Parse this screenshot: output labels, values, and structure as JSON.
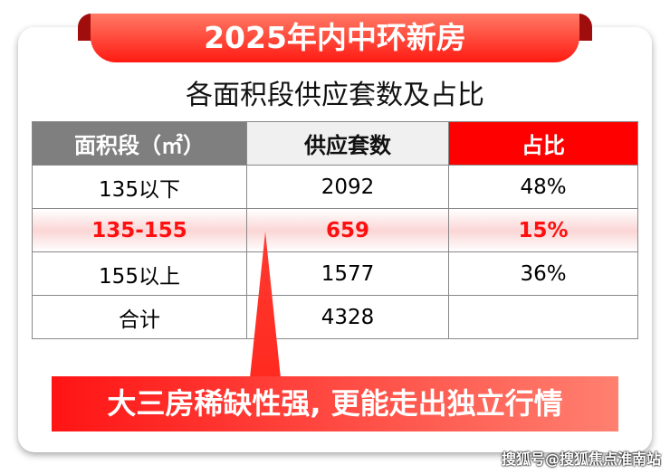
{
  "banner": {
    "title": "2025年内中环新房"
  },
  "subtitle": "各面积段供应套数及占比",
  "table": {
    "headers": [
      "面积段（㎡）",
      "供应套数",
      "占比"
    ],
    "rows": [
      [
        "135以下",
        "2092",
        "48%"
      ],
      [
        "135-155",
        "659",
        "15%"
      ],
      [
        "155以上",
        "1577",
        "36%"
      ],
      [
        "合计",
        "4328",
        ""
      ]
    ],
    "highlight_row": 1
  },
  "callout": "大三房稀缺性强, 更能走出独立行情",
  "watermark": "搜狐号@搜狐焦点淮南站",
  "colors": {
    "accent": "#ff0000",
    "header_gray": "#7f7f7f"
  }
}
